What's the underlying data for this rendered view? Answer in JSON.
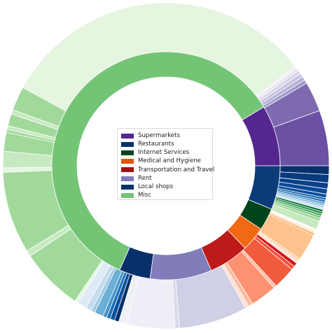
{
  "chart_data": {
    "type": "pie",
    "style": "nested-donut",
    "legend_placement": "center",
    "inner_ring": [
      {
        "name": "Supermarkets",
        "value": 8.2,
        "color": "#54278f"
      },
      {
        "name": "Misc",
        "value": 56.8,
        "color": "#74c476"
      },
      {
        "name": "Local shops",
        "value": 4.2,
        "color": "#08306b"
      },
      {
        "name": "Rent",
        "value": 8.3,
        "color": "#807dba"
      },
      {
        "name": "Transportation and Travel",
        "value": 5.4,
        "color": "#bd1a1a"
      },
      {
        "name": "Medical and Hygiene",
        "value": 3.3,
        "color": "#f16913"
      },
      {
        "name": "Internet Services",
        "value": 3.0,
        "color": "#00441b"
      },
      {
        "name": "Restaurants",
        "value": 5.9,
        "color": "#0c3c78"
      }
    ],
    "outer_ring": [
      {
        "value": 7.4,
        "color": "#6a51a3"
      },
      {
        "value": 4.0,
        "color": "#7e6ab0"
      },
      {
        "value": 0.5,
        "color": "#9e9ac8"
      },
      {
        "value": 0.5,
        "color": "#b3afd4"
      },
      {
        "value": 0.5,
        "color": "#c6c3e0"
      },
      {
        "value": 0.5,
        "color": "#d8d6ea"
      },
      {
        "value": 0.4,
        "color": "#e6e5f1"
      },
      {
        "value": 0.3,
        "color": "#efeef6"
      },
      {
        "value": 42.5,
        "color": "#e5f5e0"
      },
      {
        "value": 3.2,
        "color": "#a1d99b"
      },
      {
        "value": 0.6,
        "color": "#c7e9c0"
      },
      {
        "value": 1.6,
        "color": "#a1d99b"
      },
      {
        "value": 0.5,
        "color": "#c7e9c0"
      },
      {
        "value": 0.4,
        "color": "#a1d99b"
      },
      {
        "value": 2.5,
        "color": "#a1d99b"
      },
      {
        "value": 2.2,
        "color": "#c7e9c0"
      },
      {
        "value": 0.6,
        "color": "#e5f5e0"
      },
      {
        "value": 10.9,
        "color": "#a1d99b"
      },
      {
        "value": 0.8,
        "color": "#c7e9c0"
      },
      {
        "value": 8.4,
        "color": "#a1d99b"
      },
      {
        "value": 0.4,
        "color": "#e5f5e0"
      },
      {
        "value": 1.3,
        "color": "#deebf7"
      },
      {
        "value": 0.8,
        "color": "#c6dbef"
      },
      {
        "value": 0.5,
        "color": "#9ecae1"
      },
      {
        "value": 1.2,
        "color": "#6baed6"
      },
      {
        "value": 0.5,
        "color": "#4292c6"
      },
      {
        "value": 0.5,
        "color": "#2171b5"
      },
      {
        "value": 0.6,
        "color": "#08519c"
      },
      {
        "value": 0.6,
        "color": "#08306b"
      },
      {
        "value": 1.1,
        "color": "#eef0f6"
      },
      {
        "value": 6.4,
        "color": "#efedf5"
      },
      {
        "value": 0.6,
        "color": "#dadaeb"
      },
      {
        "value": 9.1,
        "color": "#cfcfe6"
      },
      {
        "value": 0.5,
        "color": "#fee0d2"
      },
      {
        "value": 0.6,
        "color": "#fcbba1"
      },
      {
        "value": 3.5,
        "color": "#fc9272"
      },
      {
        "value": 0.4,
        "color": "#fcbba1"
      },
      {
        "value": 3.0,
        "color": "#ef5b3c"
      },
      {
        "value": 0.5,
        "color": "#f24e3a"
      },
      {
        "value": 0.5,
        "color": "#cb181d"
      },
      {
        "value": 0.4,
        "color": "#fee0d2"
      },
      {
        "value": 0.3,
        "color": "#fdd0a2"
      },
      {
        "value": 3.6,
        "color": "#fdc38d"
      },
      {
        "value": 0.3,
        "color": "#fdae6b"
      },
      {
        "value": 0.3,
        "color": "#fee6ce"
      },
      {
        "value": 0.3,
        "color": "#f7fcf5"
      },
      {
        "value": 1.1,
        "color": "#c7e9c0"
      },
      {
        "value": 0.4,
        "color": "#a1d99b"
      },
      {
        "value": 0.3,
        "color": "#74c476"
      },
      {
        "value": 0.3,
        "color": "#41ab5d"
      },
      {
        "value": 0.3,
        "color": "#238b45"
      },
      {
        "value": 0.3,
        "color": "#006d2c"
      },
      {
        "value": 0.25,
        "color": "#c6dbef"
      },
      {
        "value": 0.25,
        "color": "#9ecae1"
      },
      {
        "value": 0.25,
        "color": "#6baed6"
      },
      {
        "value": 0.25,
        "color": "#4292c6"
      },
      {
        "value": 0.3,
        "color": "#2171b5"
      },
      {
        "value": 0.3,
        "color": "#1561a8"
      },
      {
        "value": 0.5,
        "color": "#08519c"
      },
      {
        "value": 0.7,
        "color": "#0b4a93"
      },
      {
        "value": 0.8,
        "color": "#08408a"
      },
      {
        "value": 1.1,
        "color": "#083a7e"
      },
      {
        "value": 1.15,
        "color": "#08306b"
      }
    ],
    "legend": [
      {
        "label": "Supermarkets",
        "color": "#54278f"
      },
      {
        "label": "Restaurants",
        "color": "#08306b"
      },
      {
        "label": "Internet Services",
        "color": "#00441b"
      },
      {
        "label": "Medical and Hygiene",
        "color": "#e6550d"
      },
      {
        "label": "Transportation and Travel",
        "color": "#a50f15"
      },
      {
        "label": "Rent",
        "color": "#807dba"
      },
      {
        "label": "Local shops",
        "color": "#08306b"
      },
      {
        "label": "Misc",
        "color": "#74c476"
      }
    ]
  }
}
